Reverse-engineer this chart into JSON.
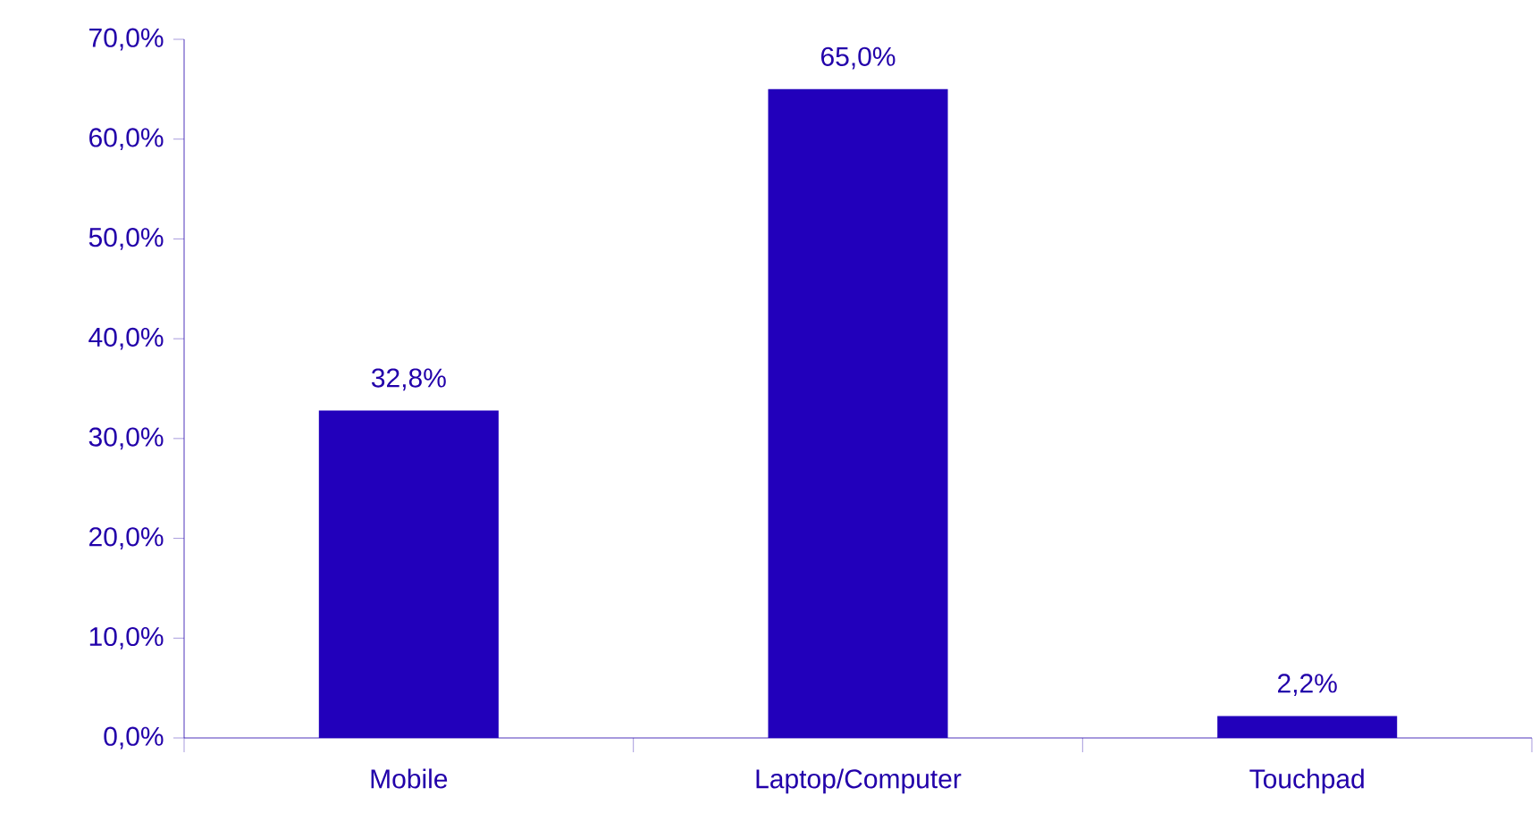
{
  "chart_data": {
    "type": "bar",
    "categories": [
      "Mobile",
      "Laptop/Computer",
      "Touchpad"
    ],
    "values": [
      32.8,
      65.0,
      2.2
    ],
    "value_labels": [
      "32,8%",
      "65,0%",
      "2,2%"
    ],
    "color": "#2200bb",
    "ylim": [
      0,
      70
    ],
    "yticks": [
      {
        "value": 0,
        "label": "0,0%"
      },
      {
        "value": 10,
        "label": "10,0%"
      },
      {
        "value": 20,
        "label": "20,0%"
      },
      {
        "value": 30,
        "label": "30,0%"
      },
      {
        "value": 40,
        "label": "40,0%"
      },
      {
        "value": 50,
        "label": "50,0%"
      },
      {
        "value": 60,
        "label": "60,0%"
      },
      {
        "value": 70,
        "label": "70,0%"
      }
    ],
    "grid": false
  }
}
